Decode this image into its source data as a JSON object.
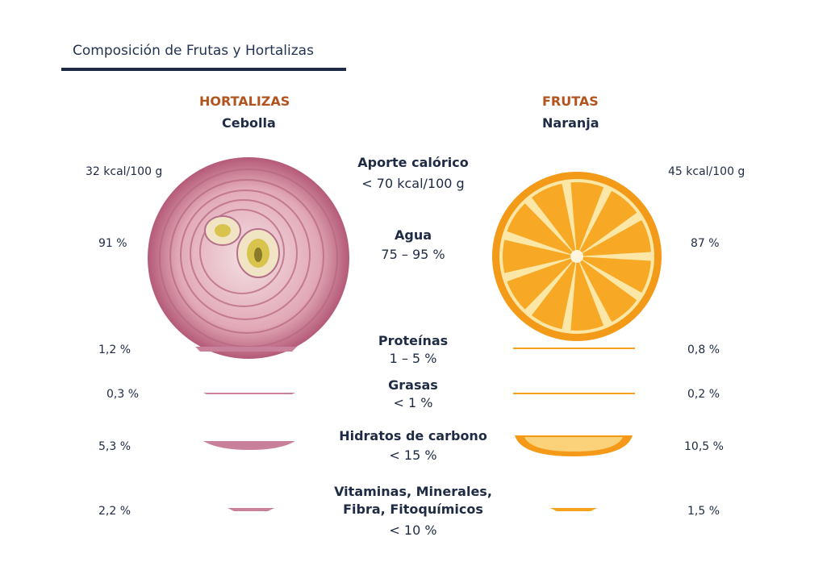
{
  "header": {
    "title": "Composición de Frutas y Hortalizas"
  },
  "left": {
    "category": "HORTALIZAS",
    "item": "Cebolla"
  },
  "right": {
    "category": "FRUTAS",
    "item": "Naranja"
  },
  "rows": [
    {
      "label": "Aporte calórico",
      "range": "< 70 kcal/100 g",
      "left_value": "32 kcal/100 g",
      "right_value": "45 kcal/100 g"
    },
    {
      "label": "Agua",
      "range": "75 – 95 %",
      "left_value": "91 %",
      "right_value": "87 %"
    },
    {
      "label": "Proteínas",
      "range": "1 – 5 %",
      "left_value": "1,2 %",
      "right_value": "0,8 %"
    },
    {
      "label": "Grasas",
      "range": "< 1 %",
      "left_value": "0,3 %",
      "right_value": "0,2 %"
    },
    {
      "label": "Hidratos de carbono",
      "range": "< 15 %",
      "left_value": "5,3 %",
      "right_value": "10,5 %"
    },
    {
      "label_line1": "Vitaminas, Minerales,",
      "label_line2": "Fibra, Fitoquímicos",
      "range": "< 10 %",
      "left_value": "2,2 %",
      "right_value": "1,5 %"
    }
  ],
  "colors": {
    "onion": "#c9809a",
    "orange": "#f5a21d",
    "accent": "#b3541e",
    "rule": "#1e2a44"
  },
  "images": {
    "left": "onion-slice-image",
    "right": "orange-slice-image"
  }
}
